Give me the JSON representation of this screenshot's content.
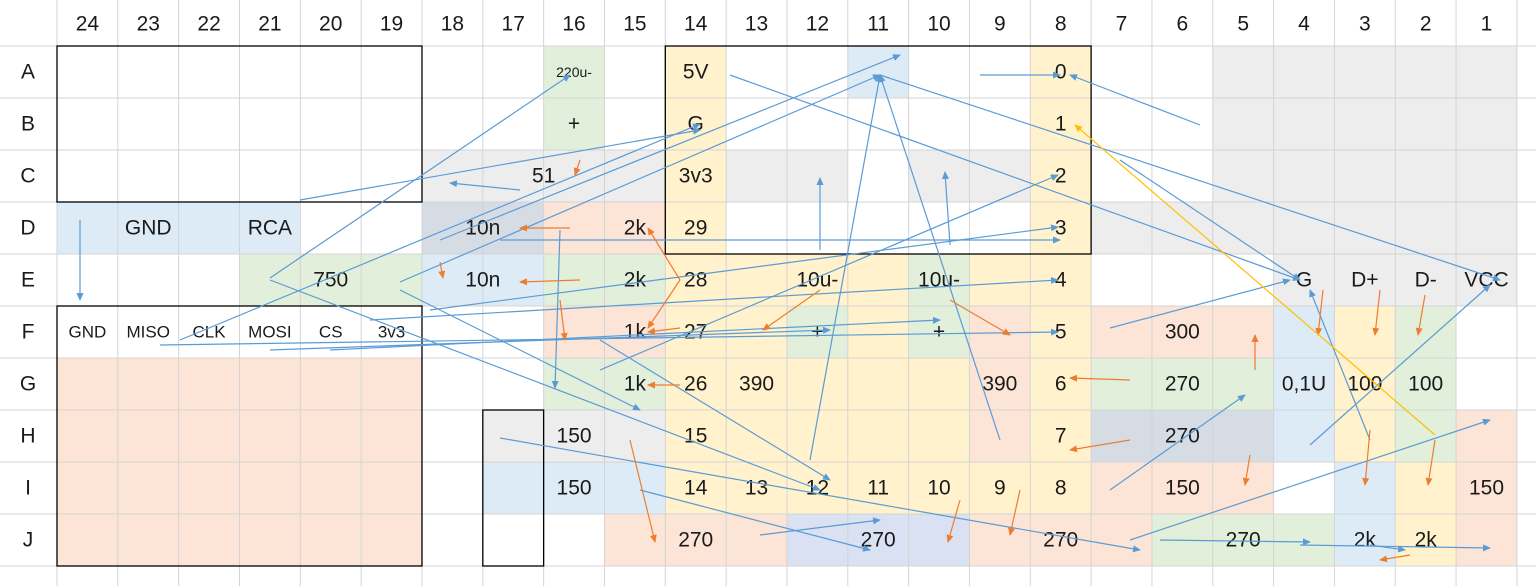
{
  "columns": [
    "24",
    "23",
    "22",
    "21",
    "20",
    "19",
    "18",
    "17",
    "16",
    "15",
    "14",
    "13",
    "12",
    "11",
    "10",
    "9",
    "8",
    "7",
    "6",
    "5",
    "4",
    "3",
    "2",
    "1"
  ],
  "rows": [
    "A",
    "B",
    "C",
    "D",
    "E",
    "F",
    "G",
    "H",
    "I",
    "J"
  ],
  "colors": {
    "grid_line": "#d4d4d4",
    "text": "#1a1a1a",
    "border_dark": "#000000",
    "arrow_blue": "#5b9bd5",
    "arrow_orange": "#ed7d31",
    "arrow_gold": "#ffc000",
    "fill_yellow": "#fff2cc",
    "fill_green": "#e2efda",
    "fill_salmon": "#fce4d6",
    "fill_blue": "#ddebf7",
    "fill_gray": "#ededed",
    "fill_slate": "#d6dce4",
    "fill_navy": "#d9e1f2"
  },
  "cells": [
    {
      "row": "A",
      "col": "16",
      "label": "220u-",
      "fill": "#e2efda"
    },
    {
      "row": "B",
      "col": "16",
      "label": "+",
      "fill": "#e2efda"
    },
    {
      "row": "A",
      "col": "14",
      "label": "5V",
      "fill": "#fff2cc"
    },
    {
      "row": "B",
      "col": "14",
      "label": "G",
      "fill": "#fff2cc"
    },
    {
      "row": "C",
      "col": "14",
      "label": "3v3",
      "fill": "#fff2cc"
    },
    {
      "row": "D",
      "col": "14",
      "label": "29",
      "fill": "#fff2cc"
    },
    {
      "row": "E",
      "col": "14",
      "label": "28",
      "fill": "#fff2cc"
    },
    {
      "row": "F",
      "col": "14",
      "label": "27",
      "fill": "#fff2cc"
    },
    {
      "row": "G",
      "col": "14",
      "label": "26",
      "fill": "#fff2cc"
    },
    {
      "row": "H",
      "col": "14",
      "label": "15",
      "fill": "#fff2cc"
    },
    {
      "row": "I",
      "col": "14",
      "label": "14",
      "fill": "#fff2cc"
    },
    {
      "row": "A",
      "col": "11",
      "label": "",
      "fill": "#ddebf7"
    },
    {
      "row": "A",
      "col": "8",
      "label": "0",
      "fill": "#fff2cc"
    },
    {
      "row": "B",
      "col": "8",
      "label": "1",
      "fill": "#fff2cc"
    },
    {
      "row": "C",
      "col": "8",
      "label": "2",
      "fill": "#fff2cc"
    },
    {
      "row": "D",
      "col": "8",
      "label": "3",
      "fill": "#fff2cc"
    },
    {
      "row": "E",
      "col": "8",
      "label": "4",
      "fill": "#fff2cc"
    },
    {
      "row": "F",
      "col": "8",
      "label": "5",
      "fill": "#fff2cc"
    },
    {
      "row": "G",
      "col": "8",
      "label": "6",
      "fill": "#fff2cc"
    },
    {
      "row": "H",
      "col": "8",
      "label": "7",
      "fill": "#fff2cc"
    },
    {
      "row": "I",
      "col": "8",
      "label": "8",
      "fill": "#fff2cc"
    },
    {
      "row": "C",
      "col": "13",
      "label": "",
      "fill": "#ededed"
    },
    {
      "row": "C",
      "col": "12",
      "label": "",
      "fill": "#ededed"
    },
    {
      "row": "C",
      "col": "10",
      "label": "",
      "fill": "#ededed"
    },
    {
      "row": "C",
      "col": "9",
      "label": "",
      "fill": "#ededed"
    },
    {
      "row": "D",
      "col": "21",
      "label": "RCA",
      "fill": "#ddebf7"
    },
    {
      "row": "D",
      "col": "16",
      "label": "",
      "fill": "#fce4d6"
    },
    {
      "row": "D",
      "col": "15",
      "label": "2k",
      "fill": "#fce4d6"
    },
    {
      "row": "E",
      "col": "16",
      "label": "",
      "fill": "#e2efda"
    },
    {
      "row": "E",
      "col": "15",
      "label": "2k",
      "fill": "#e2efda"
    },
    {
      "row": "F",
      "col": "16",
      "label": "",
      "fill": "#fce4d6"
    },
    {
      "row": "F",
      "col": "15",
      "label": "1k",
      "fill": "#fce4d6"
    },
    {
      "row": "G",
      "col": "16",
      "label": "",
      "fill": "#e2efda"
    },
    {
      "row": "G",
      "col": "15",
      "label": "1k",
      "fill": "#e2efda"
    },
    {
      "row": "E",
      "col": "13",
      "label": "",
      "fill": "#fff2cc"
    },
    {
      "row": "F",
      "col": "13",
      "label": "",
      "fill": "#fff2cc"
    },
    {
      "row": "E",
      "col": "12",
      "label": "10u-",
      "fill": "#fff2cc"
    },
    {
      "row": "F",
      "col": "12",
      "label": "+",
      "fill": "#e2efda"
    },
    {
      "row": "E",
      "col": "10",
      "label": "10u-",
      "fill": "#e2efda"
    },
    {
      "row": "F",
      "col": "10",
      "label": "+",
      "fill": "#e2efda"
    },
    {
      "row": "F",
      "col": "11",
      "label": "",
      "fill": "#fff2cc"
    },
    {
      "row": "E",
      "col": "11",
      "label": "",
      "fill": "#fff2cc"
    },
    {
      "row": "E",
      "col": "9",
      "label": "",
      "fill": "#fff2cc"
    },
    {
      "row": "G",
      "col": "13",
      "label": "390",
      "fill": "#fff2cc"
    },
    {
      "row": "H",
      "col": "13",
      "label": "",
      "fill": "#fff2cc"
    },
    {
      "row": "G",
      "col": "12",
      "label": "",
      "fill": "#fff2cc"
    },
    {
      "row": "G",
      "col": "11",
      "label": "",
      "fill": "#fff2cc"
    },
    {
      "row": "G",
      "col": "10",
      "label": "",
      "fill": "#fff2cc"
    },
    {
      "row": "H",
      "col": "12",
      "label": "",
      "fill": "#fff2cc"
    },
    {
      "row": "H",
      "col": "11",
      "label": "",
      "fill": "#fff2cc"
    },
    {
      "row": "H",
      "col": "10",
      "label": "",
      "fill": "#fff2cc"
    },
    {
      "row": "F",
      "col": "9",
      "label": "",
      "fill": "#fce4d6"
    },
    {
      "row": "G",
      "col": "9",
      "label": "390",
      "fill": "#fce4d6"
    },
    {
      "row": "H",
      "col": "9",
      "label": "",
      "fill": "#fce4d6"
    },
    {
      "row": "I",
      "col": "13",
      "label": "13",
      "fill": "#fff2cc"
    },
    {
      "row": "I",
      "col": "12",
      "label": "12",
      "fill": "#fff2cc"
    },
    {
      "row": "I",
      "col": "11",
      "label": "11",
      "fill": "#fff2cc"
    },
    {
      "row": "I",
      "col": "10",
      "label": "10",
      "fill": "#fff2cc"
    },
    {
      "row": "I",
      "col": "9",
      "label": "9",
      "fill": "#fff2cc"
    },
    {
      "row": "E",
      "col": "4",
      "label": "G",
      "fill": "#ededed"
    },
    {
      "row": "E",
      "col": "3",
      "label": "D+",
      "fill": "#ededed"
    },
    {
      "row": "E",
      "col": "2",
      "label": "D-",
      "fill": "#ededed"
    },
    {
      "row": "E",
      "col": "1",
      "label": "VCC",
      "fill": "#ededed"
    },
    {
      "row": "F",
      "col": "4",
      "label": "",
      "fill": "#ddebf7"
    },
    {
      "row": "G",
      "col": "4",
      "label": "0,1U",
      "fill": "#ddebf7"
    },
    {
      "row": "H",
      "col": "4",
      "label": "",
      "fill": "#ddebf7"
    },
    {
      "row": "F",
      "col": "3",
      "label": "",
      "fill": "#fff2cc"
    },
    {
      "row": "G",
      "col": "3",
      "label": "100",
      "fill": "#fff2cc"
    },
    {
      "row": "F",
      "col": "2",
      "label": "",
      "fill": "#e2efda"
    },
    {
      "row": "G",
      "col": "2",
      "label": "100",
      "fill": "#e2efda"
    },
    {
      "row": "H",
      "col": "3",
      "label": "",
      "fill": "#fff2cc"
    },
    {
      "row": "H",
      "col": "2",
      "label": "",
      "fill": "#e2efda"
    },
    {
      "row": "I",
      "col": "3",
      "label": "",
      "fill": "#ddebf7"
    },
    {
      "row": "J",
      "col": "3",
      "label": "2k",
      "fill": "#ddebf7"
    },
    {
      "row": "I",
      "col": "2",
      "label": "",
      "fill": "#fff2cc"
    },
    {
      "row": "J",
      "col": "2",
      "label": "2k",
      "fill": "#fff2cc"
    },
    {
      "row": "H",
      "col": "1",
      "label": "",
      "fill": "#fce4d6"
    },
    {
      "row": "I",
      "col": "1",
      "label": "150",
      "fill": "#fce4d6"
    },
    {
      "row": "J",
      "col": "1",
      "label": "",
      "fill": "#fce4d6"
    }
  ],
  "merged_cells": [
    {
      "rows": [
        "C",
        "C"
      ],
      "cols": [
        "18",
        "15"
      ],
      "label": "51",
      "fill": "#ededed"
    },
    {
      "rows": [
        "D",
        "D"
      ],
      "cols": [
        "24",
        "22"
      ],
      "label": "GND",
      "fill": "#ddebf7"
    },
    {
      "rows": [
        "D",
        "D"
      ],
      "cols": [
        "18",
        "17"
      ],
      "label": "10n",
      "fill": "#d6dce4"
    },
    {
      "rows": [
        "E",
        "E"
      ],
      "cols": [
        "18",
        "17"
      ],
      "label": "10n",
      "fill": "#ddebf7"
    },
    {
      "rows": [
        "E",
        "E"
      ],
      "cols": [
        "21",
        "19"
      ],
      "label": "750",
      "fill": "#e2efda"
    },
    {
      "rows": [
        "G",
        "J"
      ],
      "cols": [
        "24",
        "19"
      ],
      "label": "",
      "fill": "#fce4d6"
    },
    {
      "rows": [
        "H",
        "H"
      ],
      "cols": [
        "17",
        "15"
      ],
      "label": "150",
      "fill": "#ededed"
    },
    {
      "rows": [
        "I",
        "I"
      ],
      "cols": [
        "17",
        "15"
      ],
      "label": "150",
      "fill": "#ddebf7"
    },
    {
      "rows": [
        "J",
        "J"
      ],
      "cols": [
        "15",
        "13"
      ],
      "label": "270",
      "fill": "#fce4d6"
    },
    {
      "rows": [
        "J",
        "J"
      ],
      "cols": [
        "12",
        "10"
      ],
      "label": "270",
      "fill": "#d9e1f2"
    },
    {
      "rows": [
        "J",
        "J"
      ],
      "cols": [
        "9",
        "7"
      ],
      "label": "270",
      "fill": "#fce4d6"
    },
    {
      "rows": [
        "J",
        "J"
      ],
      "cols": [
        "6",
        "4"
      ],
      "label": "270",
      "fill": "#e2efda"
    },
    {
      "rows": [
        "F",
        "F"
      ],
      "cols": [
        "7",
        "5"
      ],
      "label": "300",
      "fill": "#fce4d6"
    },
    {
      "rows": [
        "G",
        "G"
      ],
      "cols": [
        "7",
        "5"
      ],
      "label": "270",
      "fill": "#e2efda"
    },
    {
      "rows": [
        "H",
        "H"
      ],
      "cols": [
        "7",
        "5"
      ],
      "label": "270",
      "fill": "#d6dce4"
    },
    {
      "rows": [
        "I",
        "I"
      ],
      "cols": [
        "7",
        "5"
      ],
      "label": "150",
      "fill": "#fce4d6"
    },
    {
      "rows": [
        "A",
        "D"
      ],
      "cols": [
        "5",
        "1"
      ],
      "label": "",
      "fill": "#ededed"
    },
    {
      "rows": [
        "D",
        "D"
      ],
      "cols": [
        "7",
        "6"
      ],
      "label": "",
      "fill": "#ededed"
    }
  ],
  "header_pins": [
    {
      "col": "24",
      "label": "GND"
    },
    {
      "col": "23",
      "label": "MISO"
    },
    {
      "col": "22",
      "label": "CLK"
    },
    {
      "col": "21",
      "label": "MOSI"
    },
    {
      "col": "20",
      "label": "CS"
    },
    {
      "col": "19",
      "label": "3v3"
    }
  ],
  "arrows_blue": [
    [
      270,
      278,
      570,
      75
    ],
    [
      180,
      340,
      700,
      124
    ],
    [
      400,
      282,
      880,
      75
    ],
    [
      810,
      460,
      880,
      75
    ],
    [
      1000,
      440,
      880,
      75
    ],
    [
      730,
      75,
      1300,
      280
    ],
    [
      880,
      75,
      1500,
      280
    ],
    [
      1120,
      160,
      1300,
      280
    ],
    [
      160,
      345,
      1058,
      332
    ],
    [
      270,
      350,
      830,
      330
    ],
    [
      330,
      350,
      940,
      320
    ],
    [
      430,
      310,
      1058,
      227
    ],
    [
      370,
      320,
      1058,
      280
    ],
    [
      600,
      370,
      1058,
      175
    ],
    [
      500,
      240,
      1060,
      240
    ],
    [
      300,
      200,
      700,
      130
    ],
    [
      80,
      220,
      80,
      300
    ],
    [
      520,
      190,
      450,
      183
    ],
    [
      440,
      240,
      900,
      55
    ],
    [
      820,
      250,
      820,
      178
    ],
    [
      950,
      245,
      945,
      172
    ],
    [
      560,
      230,
      555,
      388
    ],
    [
      1110,
      328,
      1290,
      280
    ],
    [
      1200,
      125,
      1070,
      75
    ],
    [
      1310,
      445,
      1490,
      285
    ],
    [
      1370,
      440,
      1310,
      290
    ],
    [
      500,
      438,
      1140,
      550
    ],
    [
      640,
      490,
      870,
      550
    ],
    [
      760,
      535,
      880,
      520
    ],
    [
      1110,
      490,
      1245,
      395
    ],
    [
      600,
      340,
      830,
      480
    ],
    [
      400,
      290,
      640,
      410
    ],
    [
      1130,
      540,
      1490,
      420
    ],
    [
      1160,
      540,
      1310,
      542
    ],
    [
      1300,
      545,
      1490,
      548
    ],
    [
      1370,
      545,
      1405,
      550
    ],
    [
      270,
      280,
      820,
      490
    ],
    [
      980,
      75,
      1060,
      75
    ]
  ],
  "arrows_orange": [
    [
      580,
      160,
      575,
      175
    ],
    [
      570,
      228,
      520,
      228
    ],
    [
      580,
      280,
      520,
      282
    ],
    [
      680,
      280,
      648,
      228
    ],
    [
      680,
      280,
      648,
      328
    ],
    [
      680,
      328,
      648,
      332
    ],
    [
      680,
      385,
      648,
      385
    ],
    [
      560,
      300,
      565,
      340
    ],
    [
      440,
      262,
      443,
      278
    ],
    [
      820,
      290,
      763,
      330
    ],
    [
      950,
      300,
      1010,
      335
    ],
    [
      1130,
      380,
      1070,
      378
    ],
    [
      1130,
      440,
      1070,
      450
    ],
    [
      1255,
      370,
      1255,
      335
    ],
    [
      1250,
      455,
      1245,
      485
    ],
    [
      1323,
      290,
      1318,
      335
    ],
    [
      1380,
      290,
      1375,
      335
    ],
    [
      1425,
      295,
      1418,
      335
    ],
    [
      1370,
      430,
      1365,
      485
    ],
    [
      1435,
      440,
      1428,
      485
    ],
    [
      630,
      440,
      655,
      542
    ],
    [
      960,
      500,
      948,
      542
    ],
    [
      1020,
      490,
      1010,
      535
    ],
    [
      1410,
      555,
      1380,
      560
    ]
  ],
  "arrows_gold": [
    [
      1435,
      435,
      1075,
      125
    ]
  ]
}
